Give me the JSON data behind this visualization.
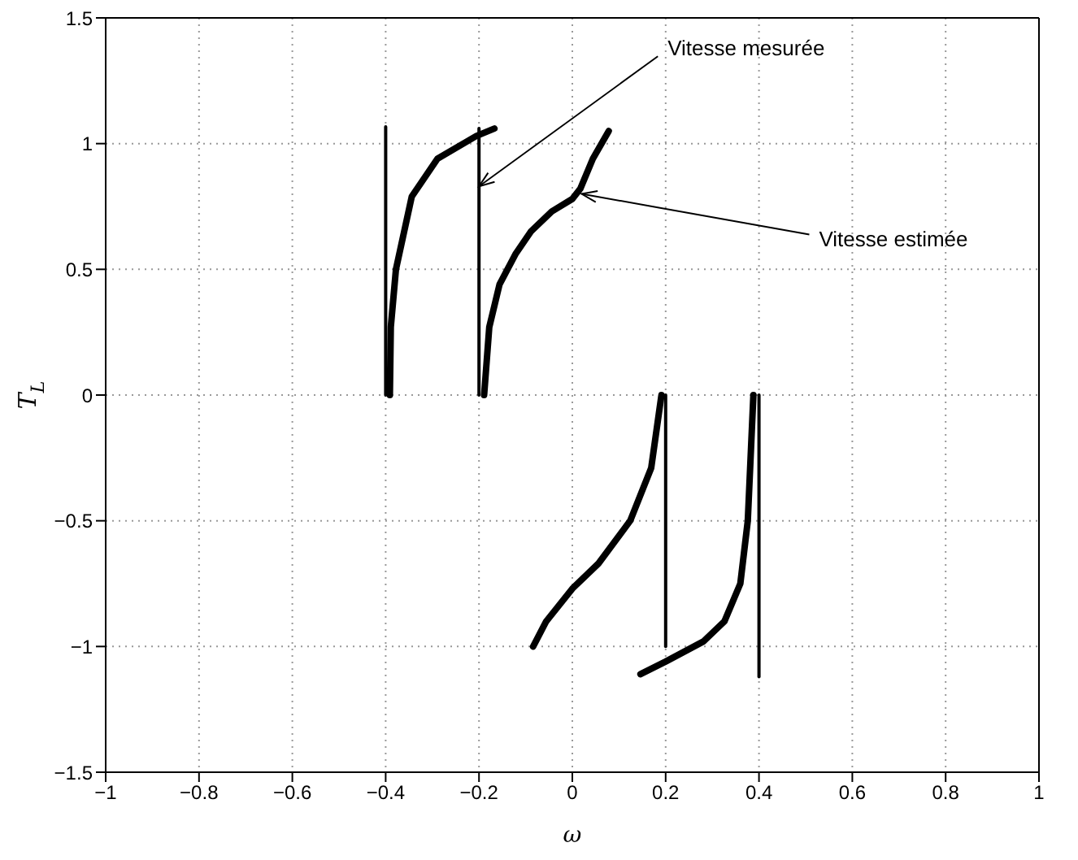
{
  "chart_data": {
    "type": "line",
    "xlabel": "ω",
    "ylabel": "T$_{L}$",
    "xlim": [
      -1,
      1
    ],
    "xticks": [
      -1,
      -0.8,
      -0.6,
      -0.4,
      -0.2,
      0,
      0.2,
      0.4,
      0.6,
      0.8,
      1
    ],
    "ylim": [
      -1.5,
      1.5
    ],
    "yticks": [
      -1.5,
      -1,
      -0.5,
      0,
      0.5,
      1,
      1.5
    ],
    "grid": true,
    "line_style": "solid",
    "series": [
      {
        "color": "#000000",
        "x": [
          -0.4,
          -0.4
        ],
        "values": [
          0,
          1.067
        ]
      },
      {
        "color": "#000000",
        "x": [
          -0.2,
          -0.2
        ],
        "values": [
          0,
          1.06
        ]
      },
      {
        "color": "#000000",
        "x": [
          0.2,
          0.2
        ],
        "values": [
          0,
          -1.0
        ]
      },
      {
        "color": "#000000",
        "x": [
          0.4,
          0.4
        ],
        "values": [
          0,
          -1.12
        ]
      },
      {
        "color": "#000000",
        "x": [
          -0.391,
          -0.389,
          -0.378,
          -0.344,
          -0.289,
          -0.206,
          -0.167
        ],
        "values": [
          0,
          0.27,
          0.5,
          0.79,
          0.94,
          1.03,
          1.06
        ]
      },
      {
        "color": "#000000",
        "x": [
          -0.189,
          -0.178,
          -0.156,
          -0.122,
          -0.089,
          -0.044,
          0,
          0.017,
          0.044,
          0.078
        ],
        "values": [
          0,
          0.27,
          0.44,
          0.56,
          0.65,
          0.73,
          0.78,
          0.82,
          0.94,
          1.05
        ]
      },
      {
        "color": "#000000",
        "x": [
          0.191,
          0.169,
          0.124,
          0.056,
          0,
          -0.056,
          -0.084
        ],
        "values": [
          0,
          -0.29,
          -0.5,
          -0.67,
          -0.77,
          -0.9,
          -1.0
        ]
      },
      {
        "color": "#000000",
        "x": [
          0.388,
          0.376,
          0.36,
          0.326,
          0.281,
          0.2,
          0.146
        ],
        "values": [
          0,
          -0.5,
          -0.75,
          -0.9,
          -0.98,
          -1.06,
          -1.11
        ]
      }
    ],
    "annotations": [
      {
        "text": "Vitesse mesurée",
        "x": -0.2,
        "y": 0.83
      },
      {
        "text": "Vitesse estimée",
        "x": 0.02,
        "y": 0.8
      }
    ]
  }
}
